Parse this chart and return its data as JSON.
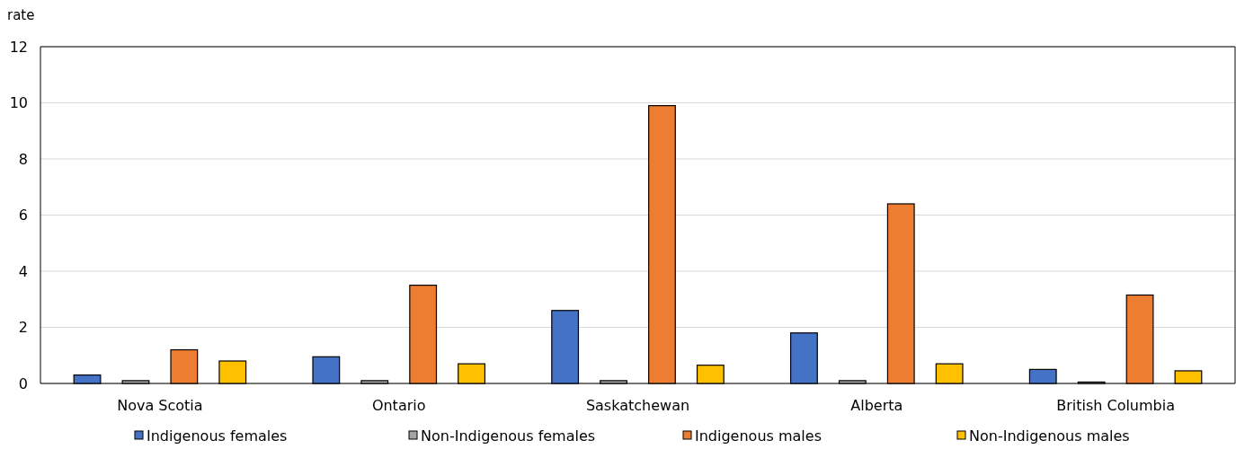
{
  "chart_data": {
    "type": "bar",
    "ylabel": "rate",
    "categories": [
      "Nova Scotia",
      "Ontario",
      "Saskatchewan",
      "Alberta",
      "British Columbia"
    ],
    "series": [
      {
        "name": "Indigenous females",
        "color": "#4472c4",
        "values": [
          0.3,
          0.95,
          2.6,
          1.8,
          0.5
        ]
      },
      {
        "name": "Non-Indigenous females",
        "color": "#a5a5a5",
        "values": [
          0.1,
          0.1,
          0.1,
          0.1,
          0.05
        ]
      },
      {
        "name": "Indigenous males",
        "color": "#ed7d31",
        "values": [
          1.2,
          3.5,
          9.9,
          6.4,
          3.15
        ]
      },
      {
        "name": "Non-Indigenous males",
        "color": "#ffc000",
        "values": [
          0.8,
          0.7,
          0.65,
          0.7,
          0.45
        ]
      }
    ],
    "ylim": [
      0,
      12
    ],
    "yticks": [
      0,
      2,
      4,
      6,
      8,
      10,
      12
    ],
    "grid": "y",
    "legend": "bottom"
  }
}
